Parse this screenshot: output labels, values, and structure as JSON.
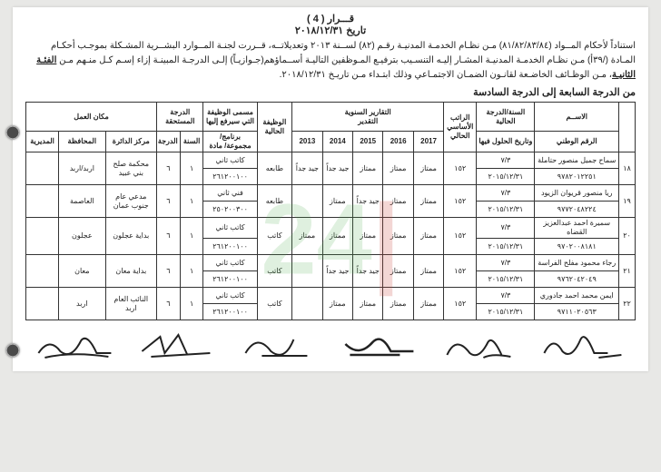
{
  "header": {
    "title": "قـــرار (  4  )",
    "date": "تاريخ ٢٠١٨/١٢/٣١"
  },
  "intro": "استناداً لأحكام المــواد (٨١/٨٢/٨٣/٨٤) مـن نظـام الخدمـة المدنيـة رقـم (٨٢) لســنة ٢٠١٣ وتعديلاتــه، قــررت لجنـة المــوارد البشــرية المشـكلة بموجـب أحكـام المـادة (/٣٩أ) مـن نظـام الخدمـة المدنيـة المشـار إليـه التنسـيب بترفيـع المـوظفين التاليـة أســماؤهم(جـوازيـاً) إلـى الدرجـة المبينـة إزاء إسـم كـل منـهم مـن <b>الفئـة الثانيـة</b>، مـن الوظـائف الخاضـعة لقانـون الضمـان الاجتمـاعي وذلك ابتـداء مـن تاريـخ ٢٠١٨/١٢/٣١.",
  "subtitle": "من الدرجة السابعة إلى الدرجة السادسة",
  "columns": {
    "num": "",
    "name": "الاســم",
    "natid": "الرقم الوطني",
    "cur_grade": "السنة/الدرجة الحالية",
    "cur_grade_sub": "وتاريخ الحلول فيها",
    "cur_rank": "الراتب الأساسي الحالي",
    "reports": "التقارير السنوية",
    "years": [
      "2017",
      "2016",
      "2015",
      "2014",
      "2013"
    ],
    "appraisal": "التقدير",
    "cur_job": "الوظيفة الحالية",
    "new_job": "مسمى الوظيفة التي سيرفع إليها",
    "new_job_sub": "برنامج/ مجموعة/ مادة",
    "new_grade": "الدرجة المستحقة",
    "new_grade_sub": [
      "السنة",
      "الدرجة"
    ],
    "workplace": "مكان العمل",
    "workplace_sub": [
      "مركز الدائرة",
      "المحافظة",
      "المديرية"
    ]
  },
  "rows": [
    {
      "num": "١٨",
      "name": "سماح جميل منصور حتاملة",
      "natid": "٩٧٨٢٠١٢٢٥١",
      "grade": "٧/٣",
      "gdate": "٢٠١٥/١٢/٣١",
      "salary": "١٥٢",
      "r": [
        "ممتاز",
        "ممتاز",
        "ممتاز",
        "جيد جداً",
        "جيد جداً"
      ],
      "cur_job": "طابعه",
      "new_job": "كاتب ثاني",
      "code": "٢٦١٢٠٠١٠٠",
      "sana": "١",
      "daraja": "٦",
      "center": "محكمة صلح بني عبيد",
      "gov": "اربد/اربد",
      "dir": ""
    },
    {
      "num": "١٩",
      "name": "ريا منصور قريوان الزيود",
      "natid": "٩٧٧٢٠٤٨٢٢٤",
      "grade": "٧/٣",
      "gdate": "٢٠١٥/١٢/٣١",
      "salary": "١٥٢",
      "r": [
        "ممتاز",
        "ممتاز",
        "جيد جداً",
        "ممتاز",
        ""
      ],
      "cur_job": "طابعه",
      "new_job": "فني ثاني",
      "code": "٢٥٠٢٠٠٣٠٠",
      "sana": "١",
      "daraja": "٦",
      "center": "مدعي عام جنوب عمان",
      "gov": "العاصمة",
      "dir": ""
    },
    {
      "num": "٢٠",
      "name": "سميرة احمد عبدالعزيز القضاه",
      "natid": "٩٧٠٢٠٠٨١٨١",
      "grade": "٧/٣",
      "gdate": "٢٠١٥/١٢/٣١",
      "salary": "١٥٢",
      "r": [
        "ممتاز",
        "ممتاز",
        "ممتاز",
        "ممتاز",
        "ممتاز"
      ],
      "cur_job": "كاتب",
      "new_job": "كاتب ثاني",
      "code": "٢٦١٢٠٠١٠٠",
      "sana": "١",
      "daraja": "٦",
      "center": "بداية عجلون",
      "gov": "عجلون",
      "dir": ""
    },
    {
      "num": "٢١",
      "name": "رجاء محمود مفلح الفراسة",
      "natid": "٩٧٦٢٠٤٢٠٤٩",
      "grade": "٧/٣",
      "gdate": "٢٠١٥/١٢/٣١",
      "salary": "١٥٢",
      "r": [
        "ممتاز",
        "ممتاز",
        "جيد جداً",
        "جيد جداً",
        ""
      ],
      "cur_job": "كاتب",
      "new_job": "كاتب ثاني",
      "code": "٢٦١٢٠٠١٠٠",
      "sana": "١",
      "daraja": "٦",
      "center": "بداية معان",
      "gov": "معان",
      "dir": ""
    },
    {
      "num": "٢٢",
      "name": "ايمن محمد احمد جادوري",
      "natid": "٩٧١١٠٢٠٥٦٣",
      "grade": "٧/٣",
      "gdate": "٢٠١٥/١٢/٣١",
      "salary": "١٥٢",
      "r": [
        "ممتاز",
        "ممتاز",
        "ممتاز",
        "ممتاز",
        ""
      ],
      "cur_job": "كاتب",
      "new_job": "كاتب ثاني",
      "code": "٢٦١٢٠٠١٠٠",
      "sana": "١",
      "daraja": "٦",
      "center": "النائب العام اربد",
      "gov": "اربد",
      "dir": ""
    }
  ],
  "watermark": "24"
}
